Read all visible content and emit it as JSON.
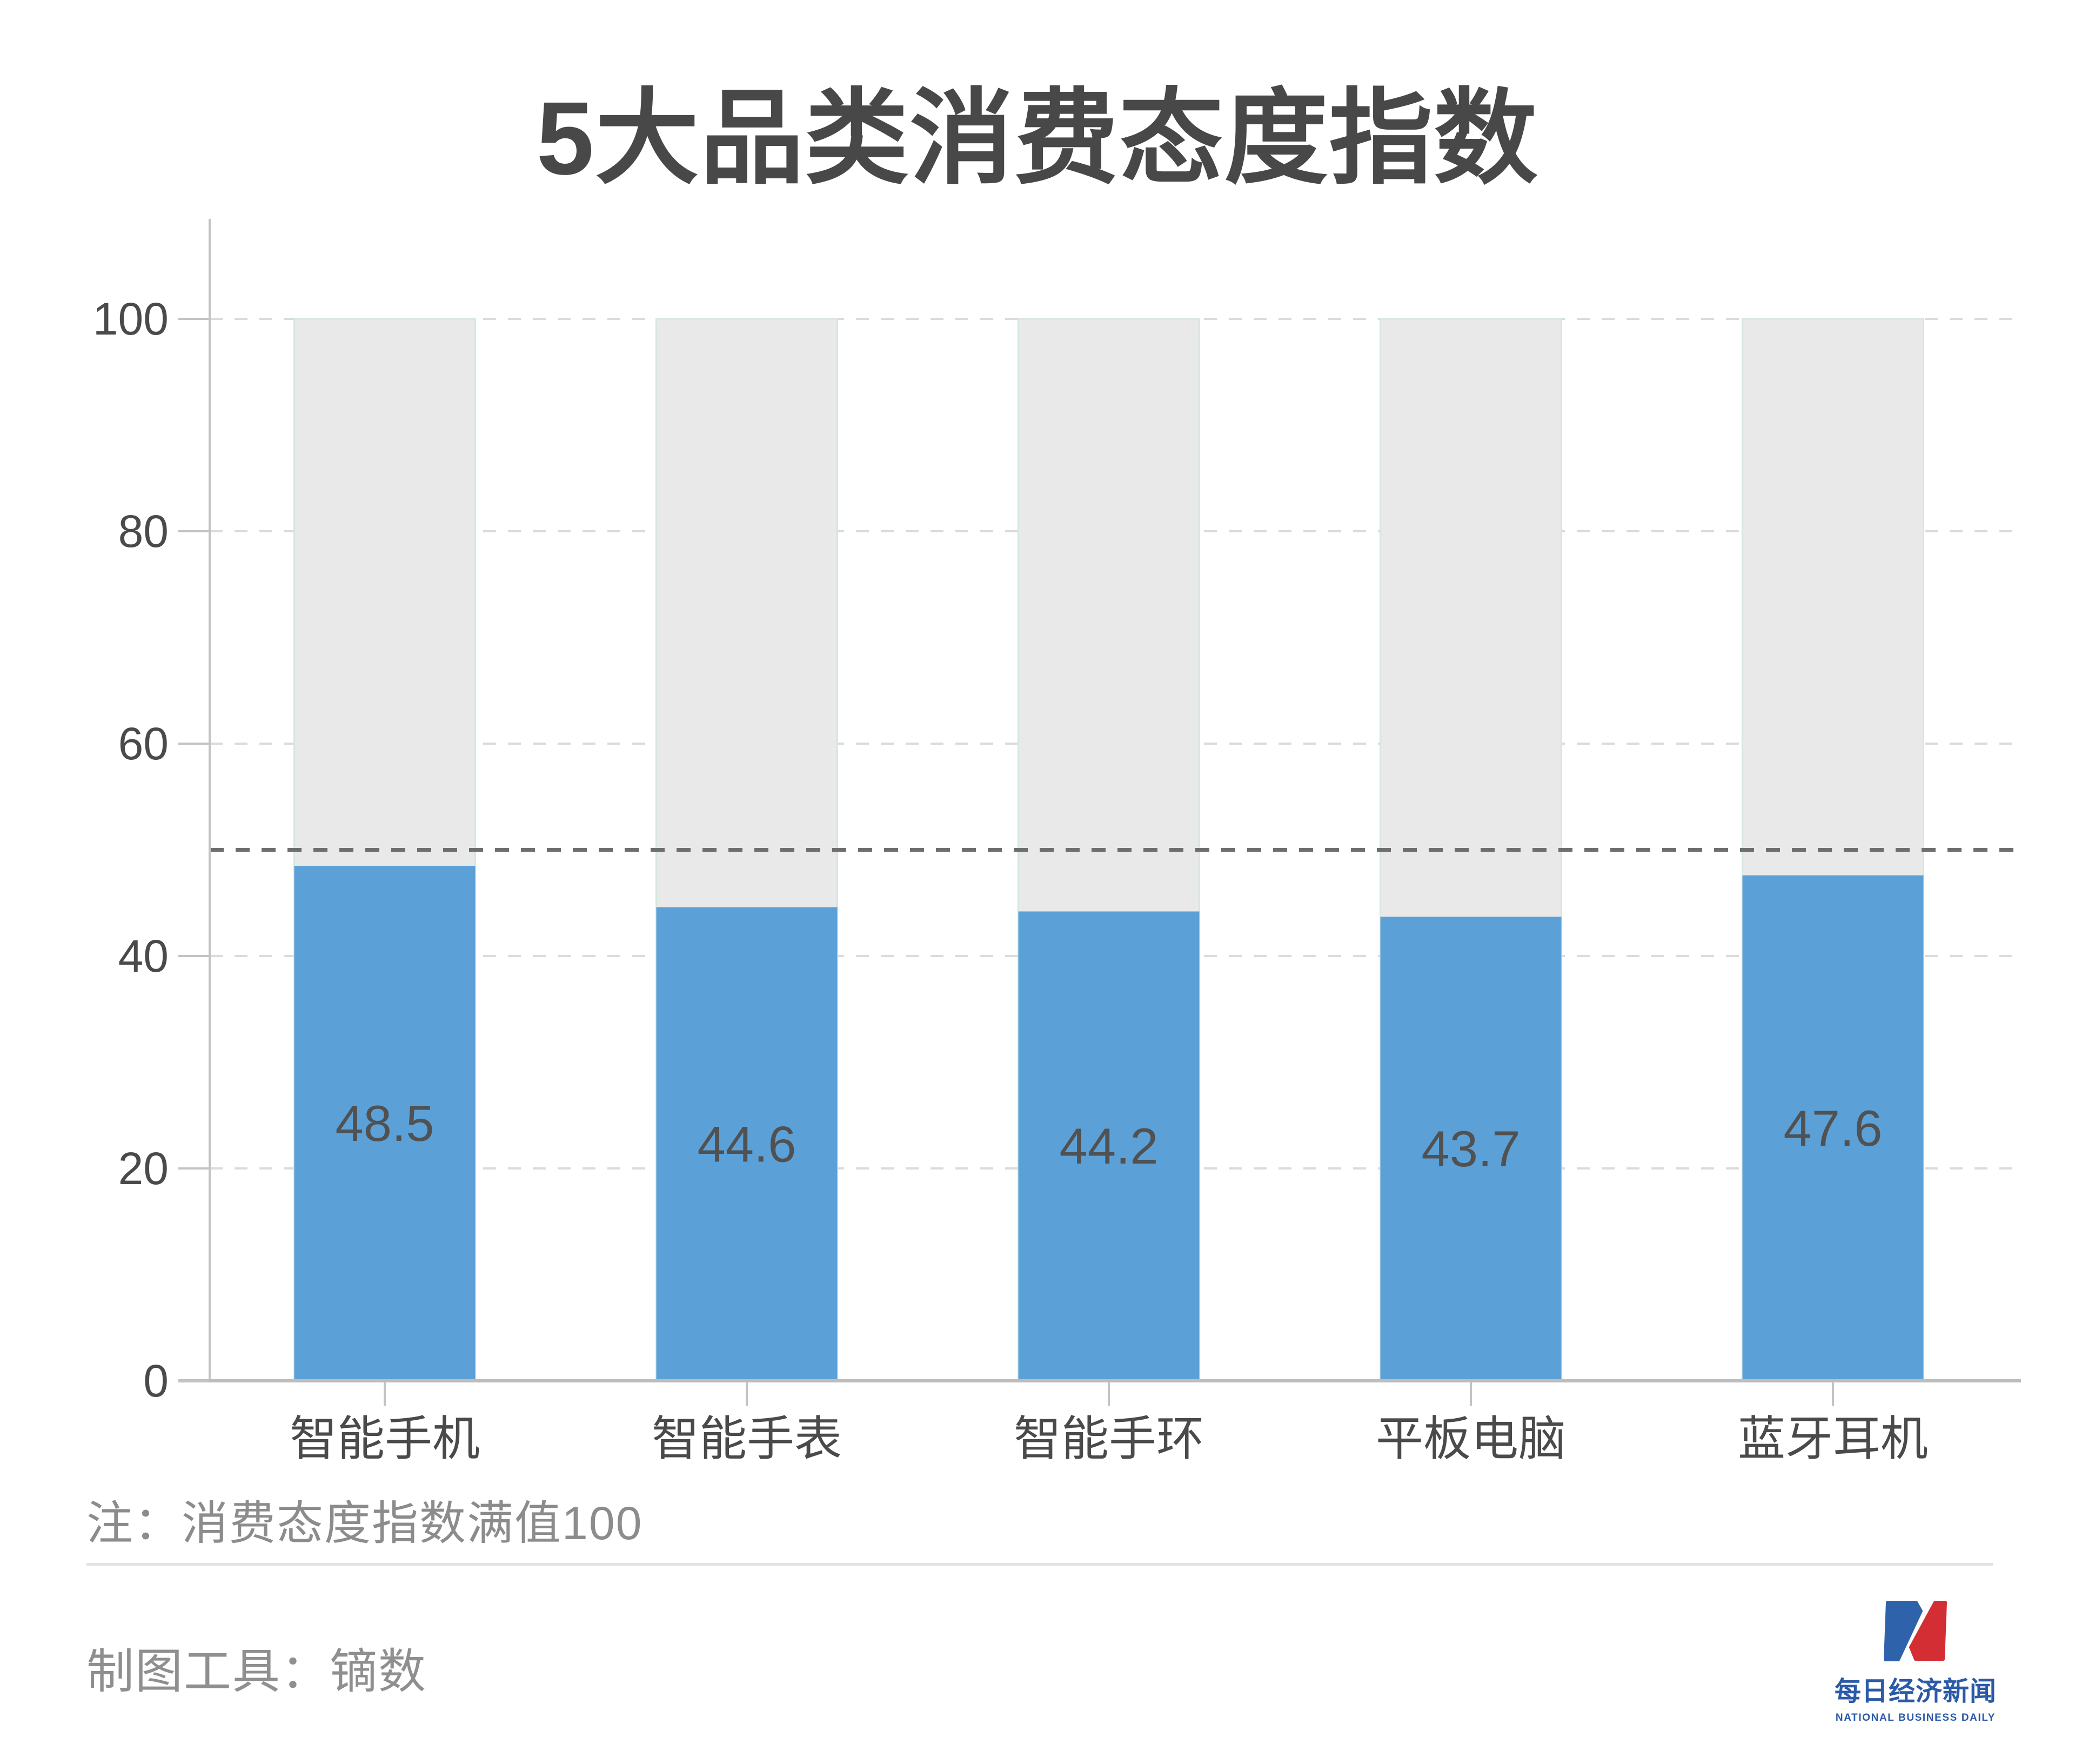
{
  "title": "5大品类消费态度指数",
  "note": "注：消费态度指数满值100",
  "footer": {
    "tool_label": "制图工具：镝数"
  },
  "logo": {
    "name_cn": "每日经济新闻",
    "name_en": "NATIONAL BUSINESS DAILY",
    "mark_blue": "#2E63AC",
    "mark_red": "#D32E33",
    "text_blue": "#2B5AA7"
  },
  "chart_data": {
    "type": "bar",
    "title": "5大品类消费态度指数",
    "categories": [
      "智能手机",
      "智能手表",
      "智能手环",
      "平板电脑",
      "蓝牙耳机"
    ],
    "values": [
      48.5,
      44.6,
      44.2,
      43.7,
      47.6
    ],
    "y_ticks": [
      0,
      20,
      40,
      60,
      80,
      100
    ],
    "ylim": [
      0,
      100
    ],
    "track_value": 100,
    "reference_line": 50,
    "grid": true,
    "legend": "none",
    "xlabel": "",
    "ylabel": "",
    "colors": {
      "bar_fill": "#5BA1D8",
      "track_fill": "#E9E9E9",
      "track_border": "#D5E7DE",
      "grid_line": "#DBDBDB",
      "axis_line": "#C3C3C3",
      "baseline": "#BDBDBD",
      "reference_line": "#6E6E6E",
      "tick_label": "#4A4A4A",
      "value_label": "#515151"
    }
  }
}
